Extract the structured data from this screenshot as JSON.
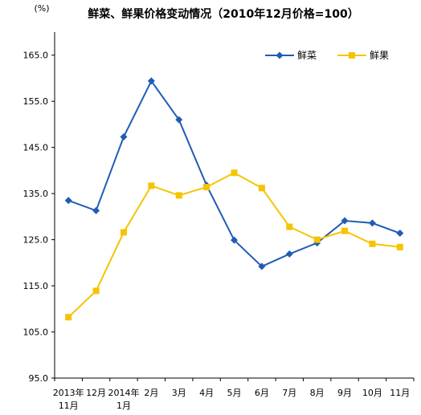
{
  "chart_data": {
    "type": "line",
    "title": "鲜菜、鲜果价格变动情况（2010年12月价格=100）",
    "unit_label": "(%)",
    "categories": [
      [
        "2013年",
        "11月"
      ],
      [
        "12月"
      ],
      [
        "2014年",
        "1月"
      ],
      [
        "2月"
      ],
      [
        "3月"
      ],
      [
        "4月"
      ],
      [
        "5月"
      ],
      [
        "6月"
      ],
      [
        "7月"
      ],
      [
        "8月"
      ],
      [
        "9月"
      ],
      [
        "10月"
      ],
      [
        "11月"
      ]
    ],
    "yticks": [
      "95.0",
      "105.0",
      "115.0",
      "125.0",
      "135.0",
      "145.0",
      "155.0",
      "165.0"
    ],
    "ylim": [
      95,
      170
    ],
    "grid": false,
    "legend_position": "top-right",
    "series": [
      {
        "name": "鲜菜",
        "color": "#1f5cb4",
        "marker": "diamond",
        "values": [
          133.5,
          131.3,
          147.3,
          159.4,
          151.0,
          136.8,
          124.9,
          119.2,
          121.9,
          124.3,
          129.1,
          128.6,
          126.4
        ]
      },
      {
        "name": "鲜果",
        "color": "#f5c400",
        "marker": "square",
        "values": [
          108.2,
          113.9,
          126.6,
          136.7,
          134.6,
          136.4,
          139.5,
          136.2,
          127.8,
          125.0,
          126.9,
          124.1,
          123.4
        ]
      }
    ]
  }
}
